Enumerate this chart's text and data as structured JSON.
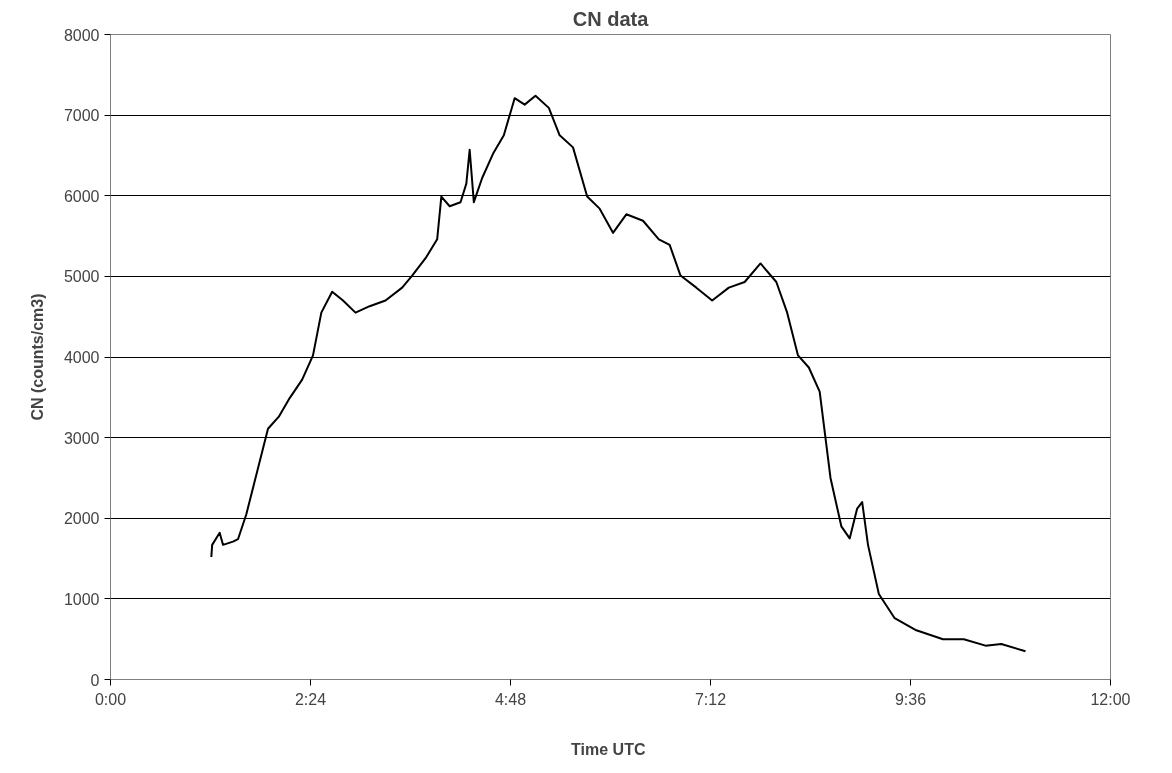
{
  "chart_data": {
    "type": "line",
    "title": "CN data",
    "xlabel": "Time  UTC",
    "ylabel": "CN (counts/cm3)",
    "xlim": [
      0,
      12
    ],
    "xticks": [
      {
        "value": 0,
        "label": "0:00"
      },
      {
        "value": 2.4,
        "label": "2:24"
      },
      {
        "value": 4.8,
        "label": "4:48"
      },
      {
        "value": 7.2,
        "label": "7:12"
      },
      {
        "value": 9.6,
        "label": "9:36"
      },
      {
        "value": 12,
        "label": "12:00"
      }
    ],
    "ylim": [
      0,
      8000
    ],
    "yticks": [
      0,
      1000,
      2000,
      3000,
      4000,
      5000,
      6000,
      7000,
      8000
    ],
    "grid": "y",
    "marker": "none",
    "line_style": "solid",
    "series": [
      {
        "color": "#000000",
        "x": [
          1.21,
          1.22,
          1.31,
          1.35,
          1.47,
          1.53,
          1.63,
          1.76,
          1.89,
          2.02,
          2.15,
          2.3,
          2.43,
          2.53,
          2.66,
          2.79,
          2.94,
          3.11,
          3.3,
          3.5,
          3.62,
          3.79,
          3.92,
          3.97,
          4.07,
          4.2,
          4.27,
          4.31,
          4.36,
          4.46,
          4.59,
          4.72,
          4.85,
          4.97,
          5.1,
          5.26,
          5.39,
          5.55,
          5.72,
          5.87,
          6.03,
          6.19,
          6.39,
          6.58,
          6.71,
          6.84,
          7.03,
          7.22,
          7.42,
          7.61,
          7.8,
          7.99,
          8.12,
          8.25,
          8.38,
          8.51,
          8.64,
          8.77,
          8.87,
          8.96,
          9.02,
          9.09,
          9.22,
          9.41,
          9.67,
          9.99,
          10.24,
          10.5,
          10.69,
          10.98
        ],
        "values": [
          1520,
          1670,
          1820,
          1670,
          1710,
          1740,
          2050,
          2580,
          3110,
          3260,
          3490,
          3720,
          4020,
          4550,
          4810,
          4700,
          4550,
          4630,
          4700,
          4860,
          5010,
          5240,
          5460,
          5990,
          5870,
          5920,
          6150,
          6570,
          5920,
          6220,
          6520,
          6750,
          7210,
          7130,
          7240,
          7090,
          6750,
          6600,
          5990,
          5840,
          5540,
          5770,
          5690,
          5460,
          5390,
          5010,
          4860,
          4700,
          4860,
          4930,
          5160,
          4930,
          4550,
          4020,
          3870,
          3570,
          2500,
          1900,
          1750,
          2120,
          2200,
          1670,
          1060,
          760,
          610,
          500,
          500,
          420,
          440,
          350
        ]
      }
    ]
  }
}
